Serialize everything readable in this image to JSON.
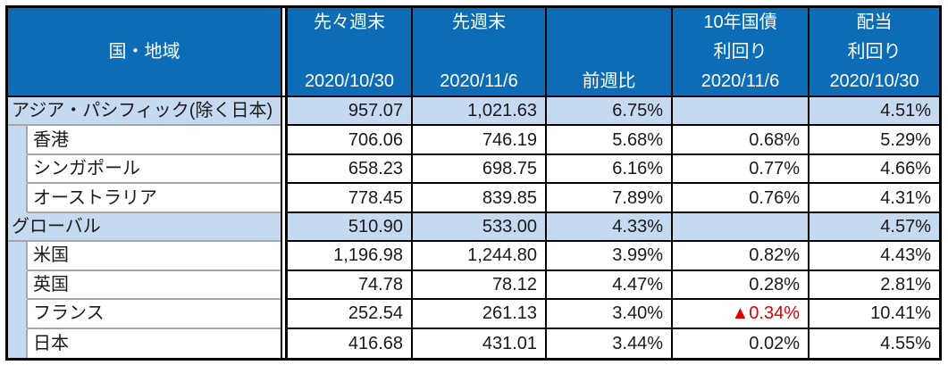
{
  "colors": {
    "header_bg": "#0d6cb6",
    "header_text": "#ffffff",
    "highlight_row_bg": "#c5d9f1",
    "negative_value": "#e00000",
    "grid_border": "#000000",
    "sub_border": "#a6a6a6",
    "body_text": "#1a1a1a"
  },
  "table": {
    "header": {
      "region": "国・地域",
      "columns": [
        {
          "key": "prev2_close",
          "lines": [
            "先々週末",
            "",
            "2020/10/30"
          ]
        },
        {
          "key": "prev_close",
          "lines": [
            "先週末",
            "",
            "2020/11/6"
          ]
        },
        {
          "key": "wow_change",
          "lines": [
            "",
            "",
            "前週比"
          ]
        },
        {
          "key": "bond10y_yield",
          "lines": [
            "10年国債",
            "利回り",
            "2020/11/6"
          ]
        },
        {
          "key": "dividend_yield",
          "lines": [
            "配当",
            "利回り",
            "2020/10/30"
          ]
        }
      ]
    },
    "rows": [
      {
        "region": "アジア・パシフィック(除く日本)",
        "group_header": true,
        "prev2_close": "957.07",
        "prev_close": "1,021.63",
        "wow_change": "6.75%",
        "bond10y_yield": "",
        "dividend_yield": "4.51%",
        "bond_negative": false
      },
      {
        "region": "香港",
        "group_header": false,
        "prev2_close": "706.06",
        "prev_close": "746.19",
        "wow_change": "5.68%",
        "bond10y_yield": "0.68%",
        "dividend_yield": "5.29%",
        "bond_negative": false
      },
      {
        "region": "シンガポール",
        "group_header": false,
        "prev2_close": "658.23",
        "prev_close": "698.75",
        "wow_change": "6.16%",
        "bond10y_yield": "0.77%",
        "dividend_yield": "4.66%",
        "bond_negative": false
      },
      {
        "region": "オーストラリア",
        "group_header": false,
        "prev2_close": "778.45",
        "prev_close": "839.85",
        "wow_change": "7.89%",
        "bond10y_yield": "0.76%",
        "dividend_yield": "4.31%",
        "bond_negative": false
      },
      {
        "region": "グローバル",
        "group_header": true,
        "prev2_close": "510.90",
        "prev_close": "533.00",
        "wow_change": "4.33%",
        "bond10y_yield": "",
        "dividend_yield": "4.57%",
        "bond_negative": false
      },
      {
        "region": "米国",
        "group_header": false,
        "prev2_close": "1,196.98",
        "prev_close": "1,244.80",
        "wow_change": "3.99%",
        "bond10y_yield": "0.82%",
        "dividend_yield": "4.43%",
        "bond_negative": false
      },
      {
        "region": "英国",
        "group_header": false,
        "prev2_close": "74.78",
        "prev_close": "78.12",
        "wow_change": "4.47%",
        "bond10y_yield": "0.28%",
        "dividend_yield": "2.81%",
        "bond_negative": false
      },
      {
        "region": "フランス",
        "group_header": false,
        "prev2_close": "252.54",
        "prev_close": "261.13",
        "wow_change": "3.40%",
        "bond10y_yield": "▲0.34%",
        "dividend_yield": "10.41%",
        "bond_negative": true
      },
      {
        "region": "日本",
        "group_header": false,
        "prev2_close": "416.68",
        "prev_close": "431.01",
        "wow_change": "3.44%",
        "bond10y_yield": "0.02%",
        "dividend_yield": "4.55%",
        "bond_negative": false
      }
    ]
  },
  "chart_data": {
    "type": "table",
    "columns": [
      "国・地域",
      "先々週末 2020/10/30",
      "先週末 2020/11/6",
      "前週比",
      "10年国債利回り 2020/11/6",
      "配当利回り 2020/10/30"
    ],
    "rows": [
      [
        "アジア・パシフィック(除く日本)",
        957.07,
        1021.63,
        "6.75%",
        null,
        "4.51%"
      ],
      [
        "香港",
        706.06,
        746.19,
        "5.68%",
        "0.68%",
        "5.29%"
      ],
      [
        "シンガポール",
        658.23,
        698.75,
        "6.16%",
        "0.77%",
        "4.66%"
      ],
      [
        "オーストラリア",
        778.45,
        839.85,
        "7.89%",
        "0.76%",
        "4.31%"
      ],
      [
        "グローバル",
        510.9,
        533.0,
        "4.33%",
        null,
        "4.57%"
      ],
      [
        "米国",
        1196.98,
        1244.8,
        "3.99%",
        "0.82%",
        "4.43%"
      ],
      [
        "英国",
        74.78,
        78.12,
        "4.47%",
        "0.28%",
        "2.81%"
      ],
      [
        "フランス",
        252.54,
        261.13,
        "3.40%",
        "▲0.34%",
        "10.41%"
      ],
      [
        "日本",
        416.68,
        431.01,
        "3.44%",
        "0.02%",
        "4.55%"
      ]
    ],
    "notes": "▲ = negative value (red); group-header rows (アジア・パシフィック, グローバル) are highlighted light blue with blank bond yield"
  }
}
